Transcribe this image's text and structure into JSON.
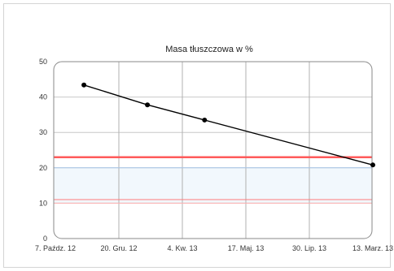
{
  "chart_data": {
    "type": "line",
    "title": "Masa tłuszczowa w %",
    "xlabel": "",
    "ylabel": "",
    "x_tick_labels": [
      "7. Paźdz. 12",
      "20. Gru. 12",
      "4. Kw. 13",
      "17. Maj. 13",
      "30. Lip. 13",
      "13. Marz. 13"
    ],
    "y_ticks": [
      0,
      10,
      20,
      30,
      40,
      50
    ],
    "ylim": [
      0,
      50
    ],
    "grid": true,
    "series": [
      {
        "values": [
          43.4,
          37.8,
          33.5,
          20.8
        ],
        "x_positions": [
          0.45,
          1.45,
          2.35,
          5.0
        ],
        "color": "#000000"
      }
    ],
    "reference_lines": [
      {
        "value": 23,
        "color": "#ff5a5a",
        "width": "thick"
      },
      {
        "value": 20,
        "color": "#a8c8ea",
        "width": "thin"
      },
      {
        "value": 11,
        "color": "#ff7a7a",
        "width": "thin"
      },
      {
        "value": 10,
        "color": "#ffb0b0",
        "width": "thin"
      }
    ],
    "band": {
      "from": 10,
      "to": 20,
      "color": "#f2f8fd"
    }
  }
}
